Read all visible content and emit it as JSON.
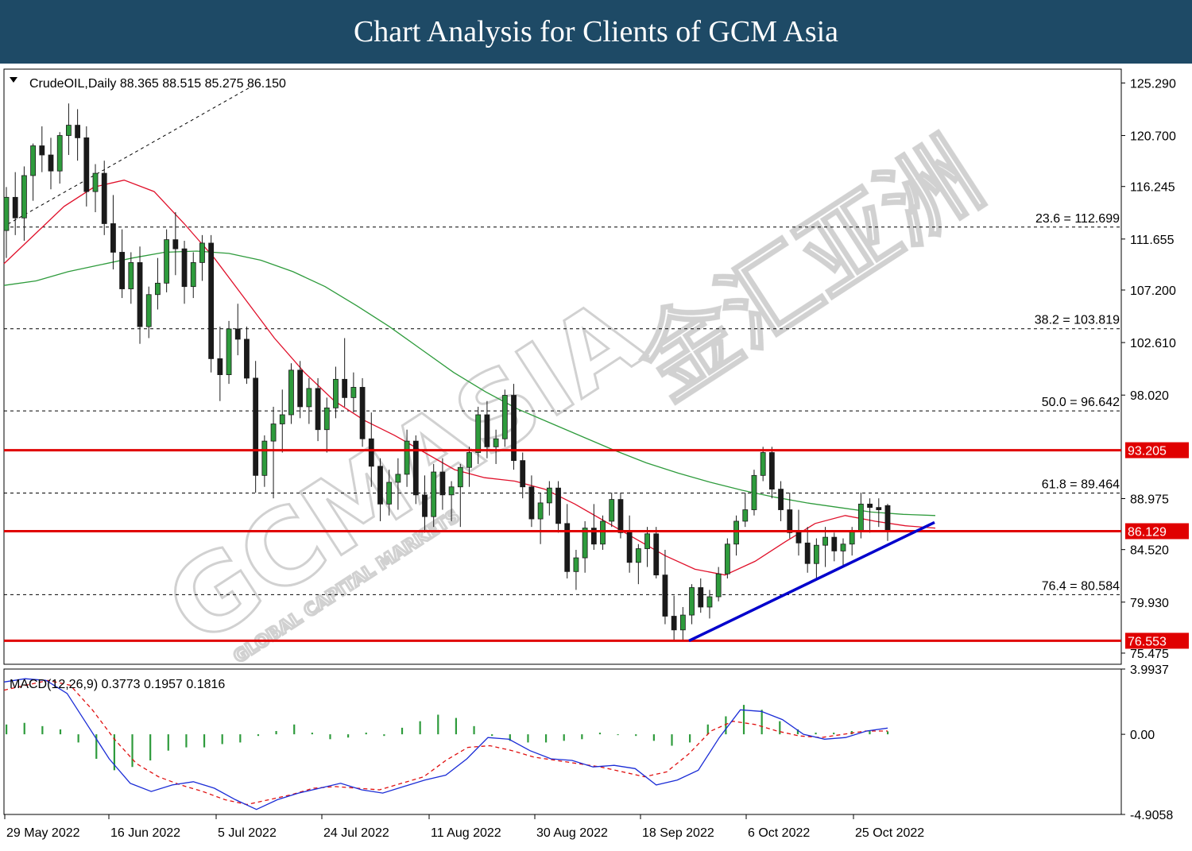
{
  "banner": {
    "title": "Chart Analysis for Clients of GCM Asia"
  },
  "chart_data": {
    "type": "candlestick",
    "symbol_info": "CrudeOIL,Daily  88.365 88.515 85.275 86.150",
    "ohlc_last": {
      "open": 88.365,
      "high": 88.515,
      "low": 85.275,
      "close": 86.15
    },
    "price_axis": {
      "ylim": [
        74.5,
        126.5
      ],
      "ticks": [
        "125.290",
        "120.700",
        "116.245",
        "111.655",
        "107.200",
        "102.610",
        "98.020",
        "88.975",
        "84.520",
        "79.930",
        "75.475"
      ]
    },
    "x_ticks": [
      "29 May 2022",
      "16 Jun 2022",
      "5 Jul 2022",
      "24 Jul 2022",
      "11 Aug 2022",
      "30 Aug 2022",
      "18 Sep 2022",
      "6 Oct 2022",
      "25 Oct 2022"
    ],
    "candles_approx": [
      [
        112.4,
        116.2,
        110.0,
        115.3
      ],
      [
        115.3,
        117.5,
        112.0,
        113.5
      ],
      [
        113.5,
        118.0,
        111.5,
        117.2
      ],
      [
        117.2,
        120.0,
        115.0,
        119.8
      ],
      [
        119.8,
        121.5,
        117.5,
        119.0
      ],
      [
        119.0,
        120.5,
        116.0,
        117.6
      ],
      [
        117.6,
        121.0,
        116.5,
        120.7
      ],
      [
        120.7,
        123.5,
        119.0,
        121.6
      ],
      [
        121.6,
        123.0,
        118.5,
        120.5
      ],
      [
        120.5,
        121.5,
        114.5,
        115.8
      ],
      [
        115.8,
        118.2,
        114.0,
        117.4
      ],
      [
        117.4,
        118.5,
        112.0,
        113.0
      ],
      [
        113.0,
        115.5,
        109.0,
        110.5
      ],
      [
        110.5,
        112.5,
        106.5,
        107.3
      ],
      [
        107.3,
        110.5,
        106.0,
        109.6
      ],
      [
        109.6,
        111.0,
        102.5,
        104.0
      ],
      [
        104.0,
        107.5,
        103.0,
        106.8
      ],
      [
        106.8,
        110.0,
        105.5,
        107.8
      ],
      [
        107.8,
        112.5,
        107.0,
        111.6
      ],
      [
        111.6,
        114.0,
        108.5,
        110.8
      ],
      [
        110.8,
        111.5,
        106.0,
        107.5
      ],
      [
        107.5,
        110.5,
        106.5,
        109.6
      ],
      [
        109.6,
        112.0,
        108.0,
        111.3
      ],
      [
        111.3,
        112.0,
        100.0,
        101.2
      ],
      [
        101.2,
        104.0,
        97.5,
        99.8
      ],
      [
        99.8,
        104.5,
        99.0,
        103.8
      ],
      [
        103.8,
        106.0,
        101.5,
        102.9
      ],
      [
        102.9,
        104.0,
        99.0,
        99.5
      ],
      [
        99.5,
        101.0,
        89.5,
        91.0
      ],
      [
        91.0,
        94.5,
        90.0,
        94.0
      ],
      [
        94.0,
        97.0,
        89.0,
        95.5
      ],
      [
        95.5,
        98.5,
        93.0,
        96.3
      ],
      [
        96.3,
        100.8,
        95.5,
        100.2
      ],
      [
        100.2,
        101.0,
        96.0,
        97.0
      ],
      [
        97.0,
        99.5,
        95.5,
        98.6
      ],
      [
        98.6,
        99.5,
        94.0,
        95.0
      ],
      [
        95.0,
        97.8,
        93.0,
        96.9
      ],
      [
        96.9,
        100.5,
        96.0,
        99.4
      ],
      [
        99.4,
        103.0,
        97.0,
        97.8
      ],
      [
        97.8,
        100.0,
        96.5,
        98.7
      ],
      [
        98.7,
        99.5,
        93.5,
        94.2
      ],
      [
        94.2,
        96.5,
        90.0,
        91.8
      ],
      [
        91.8,
        92.5,
        87.0,
        88.5
      ],
      [
        88.5,
        91.5,
        87.5,
        90.4
      ],
      [
        90.4,
        92.5,
        88.0,
        91.1
      ],
      [
        91.1,
        95.0,
        90.0,
        94.0
      ],
      [
        94.0,
        94.5,
        88.5,
        89.3
      ],
      [
        89.3,
        91.0,
        86.0,
        87.4
      ],
      [
        87.4,
        92.0,
        86.5,
        91.3
      ],
      [
        91.3,
        92.5,
        88.0,
        89.3
      ],
      [
        89.3,
        90.5,
        87.0,
        90.0
      ],
      [
        90.0,
        92.0,
        86.5,
        91.7
      ],
      [
        91.7,
        93.5,
        90.0,
        93.0
      ],
      [
        93.0,
        97.0,
        92.0,
        96.3
      ],
      [
        96.3,
        97.5,
        92.5,
        93.5
      ],
      [
        93.5,
        95.0,
        92.0,
        94.2
      ],
      [
        94.2,
        98.5,
        93.5,
        98.0
      ],
      [
        98.0,
        99.0,
        91.5,
        92.3
      ],
      [
        92.3,
        93.0,
        89.0,
        90.0
      ],
      [
        90.0,
        91.0,
        86.5,
        87.2
      ],
      [
        87.2,
        89.5,
        85.0,
        88.6
      ],
      [
        88.6,
        90.5,
        87.5,
        89.9
      ],
      [
        89.9,
        90.5,
        86.0,
        86.8
      ],
      [
        86.8,
        88.5,
        82.0,
        82.6
      ],
      [
        82.6,
        84.5,
        81.0,
        83.8
      ],
      [
        83.8,
        87.0,
        82.5,
        86.4
      ],
      [
        86.4,
        88.5,
        84.5,
        85.0
      ],
      [
        85.0,
        87.5,
        84.5,
        87.0
      ],
      [
        87.0,
        89.5,
        86.5,
        88.9
      ],
      [
        88.9,
        89.5,
        85.5,
        86.0
      ],
      [
        86.0,
        87.5,
        82.5,
        83.4
      ],
      [
        83.4,
        85.0,
        81.5,
        84.6
      ],
      [
        84.6,
        86.5,
        83.0,
        85.9
      ],
      [
        85.9,
        86.5,
        82.0,
        82.3
      ],
      [
        82.3,
        84.5,
        78.0,
        78.7
      ],
      [
        78.7,
        80.5,
        76.5,
        77.5
      ],
      [
        77.5,
        79.5,
        76.6,
        78.8
      ],
      [
        78.8,
        81.5,
        78.0,
        81.2
      ],
      [
        81.2,
        82.0,
        79.0,
        79.5
      ],
      [
        79.5,
        81.0,
        78.5,
        80.4
      ],
      [
        80.4,
        83.0,
        80.0,
        82.4
      ],
      [
        82.4,
        85.5,
        82.0,
        85.0
      ],
      [
        85.0,
        87.5,
        84.0,
        87.0
      ],
      [
        87.0,
        89.5,
        86.5,
        88.0
      ],
      [
        88.0,
        91.5,
        87.5,
        91.0
      ],
      [
        91.0,
        93.5,
        90.5,
        93.0
      ],
      [
        93.0,
        93.5,
        89.0,
        89.8
      ],
      [
        89.8,
        90.5,
        87.0,
        88.0
      ],
      [
        88.0,
        89.5,
        85.5,
        86.0
      ],
      [
        86.0,
        88.0,
        84.0,
        85.1
      ],
      [
        85.1,
        86.5,
        82.5,
        83.3
      ],
      [
        83.3,
        85.5,
        82.0,
        84.9
      ],
      [
        84.9,
        86.5,
        83.0,
        85.6
      ],
      [
        85.6,
        86.0,
        83.5,
        84.4
      ],
      [
        84.4,
        85.5,
        83.0,
        85.0
      ],
      [
        85.0,
        86.5,
        84.0,
        86.2
      ],
      [
        86.2,
        89.5,
        85.5,
        88.5
      ],
      [
        88.5,
        89.0,
        86.0,
        88.2
      ],
      [
        88.2,
        89.0,
        86.5,
        88.0
      ],
      [
        88.365,
        88.515,
        85.275,
        86.15
      ]
    ],
    "moving_averages": [
      {
        "color": "#e0102a",
        "values_approx": [
          109.5,
          112.0,
          114.5,
          116.2,
          116.8,
          115.8,
          113.0,
          110.0,
          106.5,
          103.0,
          100.0,
          97.5,
          95.8,
          94.5,
          93.0,
          91.5,
          90.8,
          90.5,
          89.8,
          88.5,
          87.0,
          85.5,
          84.0,
          82.8,
          82.3,
          83.5,
          85.2,
          86.8,
          87.5,
          87.0,
          86.6,
          86.4
        ]
      },
      {
        "color": "#2e9b3c",
        "values_approx": [
          107.6,
          108.0,
          108.8,
          109.4,
          110.0,
          110.5,
          110.6,
          110.4,
          109.8,
          108.8,
          107.5,
          105.8,
          104.0,
          102.0,
          100.0,
          98.3,
          96.8,
          95.6,
          94.4,
          93.2,
          92.1,
          91.2,
          90.4,
          89.7,
          89.1,
          88.6,
          88.2,
          87.8,
          87.6,
          87.5
        ]
      }
    ],
    "horizontal_levels": [
      {
        "label": "93.205",
        "value": 93.205,
        "color": "#e00000"
      },
      {
        "label": "86.129",
        "value": 86.129,
        "color": "#e00000"
      },
      {
        "label": "76.553",
        "value": 76.553,
        "color": "#e00000"
      }
    ],
    "fibonacci_levels": [
      {
        "label": "23.6 = 112.699",
        "value": 112.699
      },
      {
        "label": "38.2 = 103.819",
        "value": 103.819
      },
      {
        "label": "50.0 = 96.642",
        "value": 96.642
      },
      {
        "label": "61.8 = 89.464",
        "value": 89.464
      },
      {
        "label": "76.4 = 80.584",
        "value": 80.584
      }
    ],
    "trendline": {
      "color": "#0000cc",
      "from": [
        76.55
      ],
      "to": [
        86.9
      ]
    },
    "macd": {
      "info": "MACD(12,26,9) 0.3773 0.1957 0.1816",
      "params": [
        12,
        26,
        9
      ],
      "values": {
        "macd": 0.3773,
        "signal": 0.1957,
        "histogram": 0.1816
      },
      "ylim": [
        -4.9058,
        3.9937
      ],
      "ticks": [
        "3.9937",
        "0.00",
        "-4.9058"
      ],
      "histogram_approx": [
        0.6,
        0.7,
        0.5,
        0.3,
        -0.5,
        -1.5,
        -2.2,
        -2.0,
        -1.6,
        -1.0,
        -0.8,
        -0.8,
        -0.6,
        -0.5,
        -0.1,
        0.2,
        0.6,
        0.1,
        -0.3,
        -0.2,
        0.1,
        -0.1,
        0.4,
        0.8,
        1.2,
        1.0,
        0.5,
        -0.1,
        -0.4,
        -0.5,
        -0.5,
        -0.4,
        -0.3,
        0.1,
        0.0,
        -0.1,
        -0.4,
        -0.7,
        -0.5,
        0.6,
        1.1,
        1.8,
        1.5,
        0.8,
        0.3,
        0.1,
        0.1,
        0.2,
        0.25,
        0.18
      ],
      "macd_line_approx": [
        3.2,
        3.4,
        3.3,
        2.5,
        0.5,
        -1.5,
        -3.0,
        -3.5,
        -3.1,
        -2.9,
        -3.3,
        -4.0,
        -4.6,
        -4.0,
        -3.6,
        -3.3,
        -3.0,
        -3.4,
        -3.6,
        -3.2,
        -2.8,
        -2.5,
        -1.5,
        -0.2,
        -0.3,
        -1.0,
        -1.5,
        -1.6,
        -2.0,
        -1.9,
        -2.1,
        -3.1,
        -2.8,
        -2.2,
        -0.2,
        1.5,
        1.4,
        0.9,
        0.0,
        -0.3,
        -0.2,
        0.2,
        0.38
      ],
      "signal_line_approx": [
        2.7,
        3.0,
        3.3,
        3.0,
        1.5,
        -0.3,
        -1.8,
        -2.6,
        -3.1,
        -3.5,
        -4.0,
        -4.3,
        -4.0,
        -3.7,
        -3.3,
        -3.2,
        -3.3,
        -3.4,
        -3.0,
        -2.6,
        -1.6,
        -0.8,
        -0.7,
        -1.0,
        -1.4,
        -1.6,
        -1.8,
        -2.0,
        -2.3,
        -2.6,
        -2.3,
        -1.2,
        0.2,
        0.8,
        0.6,
        0.2,
        -0.1,
        -0.2,
        0.0,
        0.2,
        0.2
      ]
    }
  },
  "watermark": {
    "text": "GCMASIA",
    "cjk": "金汇亚洲",
    "tagline": "GLOBAL CAPITAL MARKETS"
  },
  "colors": {
    "banner": "#1e4a66",
    "support_resistance": "#e00000",
    "trendline": "#0000cc",
    "ma_fast": "#e0102a",
    "ma_slow": "#2e9b3c",
    "bull_candle": "#2e9b3c",
    "bear_candle": "#1a1a1a",
    "macd_line": "#1a2cd6",
    "signal_line": "#e01010",
    "macd_histogram": "#2e9b3c"
  }
}
